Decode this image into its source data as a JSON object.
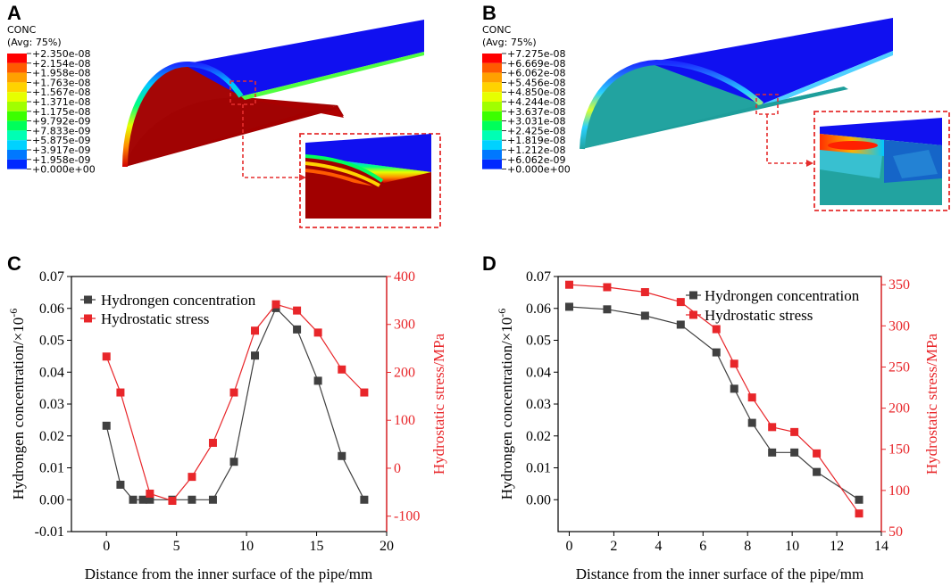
{
  "panel_a": {
    "letter": "A",
    "legend_title": "CONC",
    "legend_subtitle": "(Avg: 75%)",
    "legend_values": [
      "+2.350e-08",
      "+2.154e-08",
      "+1.958e-08",
      "+1.763e-08",
      "+1.567e-08",
      "+1.371e-08",
      "+1.175e-08",
      "+9.792e-09",
      "+7.833e-09",
      "+5.875e-09",
      "+3.917e-09",
      "+1.958e-09",
      "+0.000e+00"
    ]
  },
  "panel_b": {
    "letter": "B",
    "legend_title": "CONC",
    "legend_subtitle": "(Avg: 75%)",
    "legend_values": [
      "+7.275e-08",
      "+6.669e-08",
      "+6.062e-08",
      "+5.456e-08",
      "+4.850e-08",
      "+4.244e-08",
      "+3.637e-08",
      "+3.031e-08",
      "+2.425e-08",
      "+1.819e-08",
      "+1.212e-08",
      "+6.062e-09",
      "+0.000e+00"
    ]
  },
  "contour_colors": [
    "#ff0000",
    "#ff5a00",
    "#ffa000",
    "#ffd200",
    "#e6ff00",
    "#a0ff00",
    "#3cff00",
    "#00ff5a",
    "#00ffb4",
    "#00d2ff",
    "#0078ff",
    "#0028ff"
  ],
  "colors": {
    "black_series": "#404040",
    "red_series": "#e8262a",
    "red_axis": "#e8262a"
  },
  "chart_data": [
    {
      "panel": "C",
      "type": "line",
      "xlabel": "Distance from the inner surface of the pipe/mm",
      "ylabel_left": "Hydrongen concentration/×10",
      "ylabel_left_exp": "-6",
      "ylabel_right": "Hydrostatic stress/MPa",
      "xlim": [
        -2.5,
        20
      ],
      "ylim_left": [
        -0.01,
        0.07
      ],
      "ylim_right": [
        -132.2,
        400
      ],
      "xticks": [
        0,
        5,
        10,
        15,
        20
      ],
      "yticks_left": [
        -0.01,
        0.0,
        0.01,
        0.02,
        0.03,
        0.04,
        0.05,
        0.06,
        0.07
      ],
      "yticks_left_labels": [
        "-0.01",
        "0.00",
        "0.01",
        "0.02",
        "0.03",
        "0.04",
        "0.05",
        "0.06",
        "0.07"
      ],
      "yticks_right": [
        -100,
        0,
        100,
        200,
        300,
        400
      ],
      "series": [
        {
          "name": "Hydrongen concentration",
          "axis": "left",
          "color": "#404040",
          "x": [
            0,
            1.0,
            1.9,
            2.6,
            3.1,
            4.7,
            6.1,
            7.6,
            9.1,
            10.6,
            12.1,
            13.6,
            15.1,
            16.8,
            18.4
          ],
          "y": [
            0.0232,
            0.0047,
            0.0,
            0.0,
            0.0,
            0.0,
            0.0,
            0.0,
            0.0119,
            0.0452,
            0.0601,
            0.0534,
            0.0373,
            0.0137,
            0.0
          ]
        },
        {
          "name": "Hydrostatic stress",
          "axis": "right",
          "color": "#e8262a",
          "x": [
            0,
            1.0,
            3.1,
            4.7,
            6.1,
            7.6,
            9.1,
            10.6,
            12.1,
            13.6,
            15.1,
            16.8,
            18.4
          ],
          "y": [
            233,
            158,
            -53,
            -68,
            -18,
            53,
            158,
            287,
            342,
            329,
            283,
            206,
            158
          ]
        }
      ]
    },
    {
      "panel": "D",
      "type": "line",
      "xlabel": "Distance from the inner surface of the pipe/mm",
      "ylabel_left": "Hydrongen concentration/×10",
      "ylabel_left_exp": "-6",
      "ylabel_right": "Hydrostatic stress/MPa",
      "xlim": [
        -0.5,
        14
      ],
      "ylim_left": [
        -0.01,
        0.07
      ],
      "ylim_right": [
        50,
        360
      ],
      "xticks": [
        0,
        2,
        4,
        6,
        8,
        10,
        12,
        14
      ],
      "yticks_left": [
        0.0,
        0.01,
        0.02,
        0.03,
        0.04,
        0.05,
        0.06,
        0.07
      ],
      "yticks_left_labels": [
        "0.00",
        "0.01",
        "0.02",
        "0.03",
        "0.04",
        "0.05",
        "0.06",
        "0.07"
      ],
      "yticks_right": [
        50,
        100,
        150,
        200,
        250,
        300,
        350
      ],
      "series": [
        {
          "name": "Hydrongen concentration",
          "axis": "left",
          "color": "#404040",
          "x": [
            0,
            1.7,
            3.4,
            5.0,
            6.6,
            7.4,
            8.2,
            9.1,
            10.1,
            11.1,
            13.0
          ],
          "y": [
            0.0605,
            0.0597,
            0.0577,
            0.0549,
            0.0462,
            0.0348,
            0.0241,
            0.0148,
            0.0148,
            0.0087,
            0.0
          ]
        },
        {
          "name": "Hydrostatic stress",
          "axis": "right",
          "color": "#e8262a",
          "x": [
            0,
            1.7,
            3.4,
            5.0,
            6.6,
            7.4,
            8.2,
            9.1,
            10.1,
            11.1,
            13.0
          ],
          "y": [
            350,
            347,
            341,
            329,
            296,
            254,
            213,
            177,
            171,
            145,
            72
          ]
        }
      ]
    }
  ]
}
